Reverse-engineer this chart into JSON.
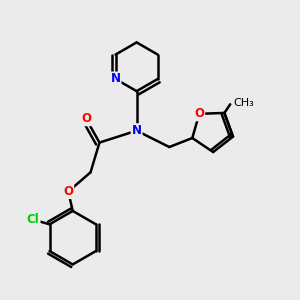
{
  "background_color": "#ebebeb",
  "bond_color": "#000000",
  "bond_width": 1.8,
  "atom_colors": {
    "N": "#0000ff",
    "O": "#ff0000",
    "Cl": "#00cc00",
    "C": "#000000"
  },
  "font_size": 8.5,
  "fig_size": [
    3.0,
    3.0
  ],
  "dpi": 100
}
